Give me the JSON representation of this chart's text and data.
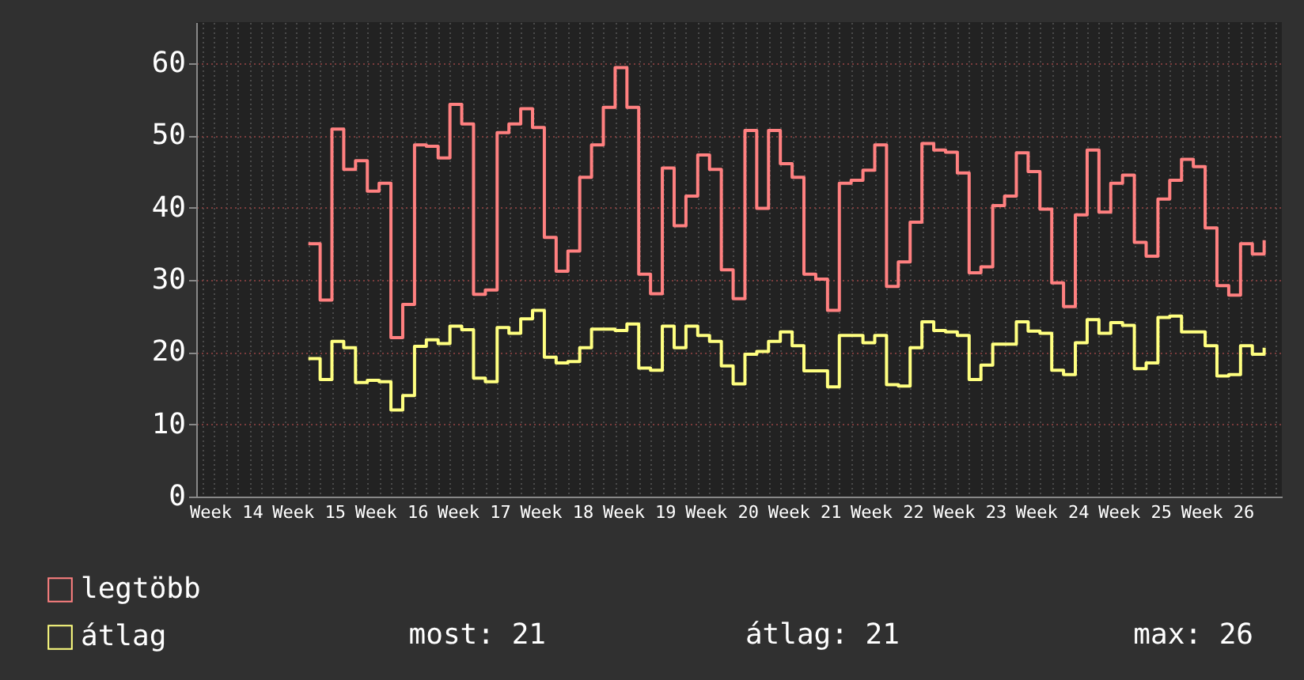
{
  "chart_data": {
    "type": "step",
    "categories": [
      null,
      null,
      "Week 14",
      null,
      null,
      null,
      null,
      null,
      null,
      "Week 15",
      null,
      null,
      null,
      null,
      null,
      null,
      "Week 16",
      null,
      null,
      null,
      null,
      null,
      null,
      "Week 17",
      null,
      null,
      null,
      null,
      null,
      null,
      "Week 18",
      null,
      null,
      null,
      null,
      null,
      null,
      "Week 19",
      null,
      null,
      null,
      null,
      null,
      null,
      "Week 20",
      null,
      null,
      null,
      null,
      null,
      null,
      "Week 21",
      null,
      null,
      null,
      null,
      null,
      null,
      "Week 22",
      null,
      null,
      null,
      null,
      null,
      null,
      "Week 23",
      null,
      null,
      null,
      null,
      null,
      null,
      "Week 24",
      null,
      null,
      null,
      null,
      null,
      null,
      "Week 25",
      null,
      null,
      null,
      null,
      null,
      null,
      "Week 26",
      null,
      null,
      null,
      null,
      null
    ],
    "ylim": [
      0,
      65.7
    ],
    "yticks": [
      0,
      10,
      20,
      30,
      40,
      50,
      60
    ],
    "grid": true,
    "legend": "bottom left",
    "line_style": "solid",
    "series": [
      {
        "name": "legtöbb",
        "color": "#ff8080",
        "values": [
          null,
          null,
          null,
          null,
          null,
          null,
          null,
          null,
          null,
          35.0,
          27.2,
          50.9,
          45.3,
          46.5,
          42.3,
          43.4,
          22.0,
          26.6,
          48.7,
          48.5,
          46.9,
          54.3,
          51.6,
          28.0,
          28.6,
          50.4,
          51.6,
          53.7,
          51.1,
          35.9,
          31.2,
          34.0,
          44.2,
          48.7,
          53.9,
          59.4,
          53.9,
          30.8,
          28.1,
          45.5,
          37.5,
          41.6,
          47.3,
          45.3,
          31.4,
          27.4,
          50.7,
          39.9,
          50.7,
          46.1,
          44.2,
          30.8,
          30.1,
          25.8,
          43.4,
          43.8,
          45.2,
          48.7,
          29.1,
          32.5,
          38.0,
          48.9,
          48.0,
          47.7,
          44.8,
          31.0,
          31.8,
          40.3,
          41.6,
          47.6,
          45.0,
          39.8,
          29.6,
          26.3,
          39.0,
          48.0,
          39.4,
          43.4,
          44.5,
          35.2,
          33.3,
          41.2,
          43.8,
          46.7,
          45.7,
          37.2,
          29.2,
          27.9,
          35.0,
          33.6,
          35.5,
          null
        ]
      },
      {
        "name": "átlag",
        "color": "#ffff80",
        "values": [
          null,
          null,
          null,
          null,
          null,
          null,
          null,
          null,
          null,
          19.1,
          16.2,
          21.5,
          20.6,
          15.8,
          16.1,
          15.9,
          12.0,
          14.0,
          20.8,
          21.7,
          21.2,
          23.6,
          23.1,
          16.4,
          15.9,
          23.4,
          22.6,
          24.6,
          25.8,
          19.3,
          18.5,
          18.7,
          20.6,
          23.2,
          23.2,
          23.0,
          23.9,
          17.8,
          17.5,
          23.6,
          20.6,
          23.6,
          22.3,
          21.5,
          18.1,
          15.6,
          19.7,
          20.1,
          21.5,
          22.8,
          20.9,
          17.4,
          17.4,
          15.2,
          22.3,
          22.3,
          21.3,
          22.3,
          15.5,
          15.3,
          20.6,
          24.2,
          23.0,
          22.8,
          22.3,
          16.2,
          18.2,
          21.1,
          21.1,
          24.2,
          22.9,
          22.6,
          17.5,
          16.9,
          21.3,
          24.5,
          22.6,
          24.1,
          23.7,
          17.7,
          18.5,
          24.8,
          25.0,
          22.8,
          22.8,
          20.9,
          16.7,
          16.9,
          20.9,
          19.7,
          20.6,
          null
        ]
      }
    ],
    "annotations": [
      "most: 21",
      "átlag: 21",
      "max: 26"
    ]
  }
}
